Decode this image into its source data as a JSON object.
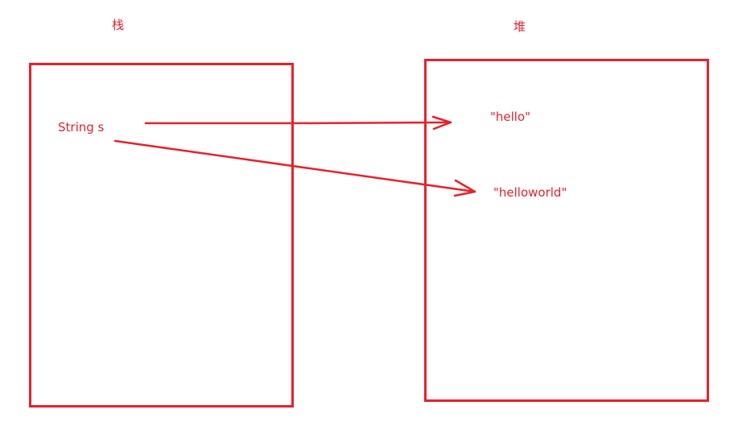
{
  "diagram": {
    "stack_label": "栈",
    "heap_label": "堆",
    "variable_label": "String s",
    "heap_objects": [
      "\"hello\"",
      "\"helloworld\""
    ],
    "accent_color": "#e8212b"
  }
}
